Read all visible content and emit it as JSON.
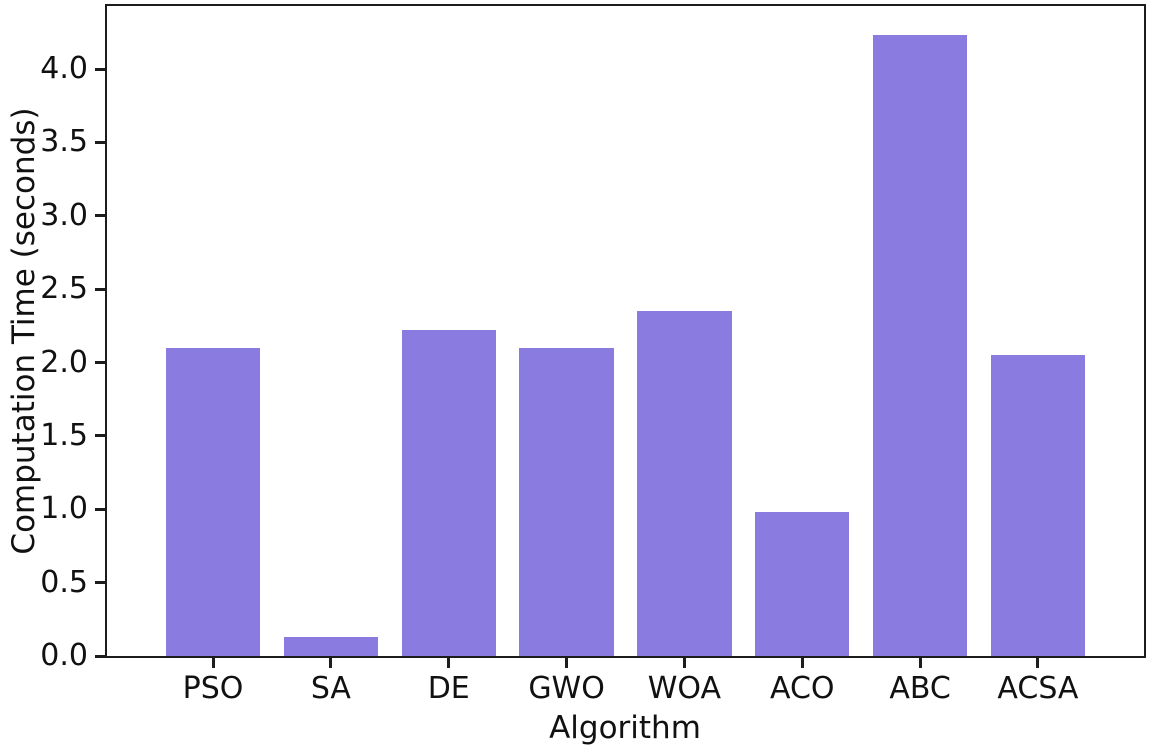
{
  "chart_data": {
    "type": "bar",
    "title": "",
    "xlabel": "Algorithm",
    "ylabel": "Computation Time (seconds)",
    "categories": [
      "PSO",
      "SA",
      "DE",
      "GWO",
      "WOA",
      "ACO",
      "ABC",
      "ACSA"
    ],
    "values": [
      2.1,
      0.13,
      2.22,
      2.1,
      2.35,
      0.98,
      4.23,
      2.05
    ],
    "ylim": [
      0,
      4.43
    ],
    "yticks": [
      0.0,
      0.5,
      1.0,
      1.5,
      2.0,
      2.5,
      3.0,
      3.5,
      4.0
    ],
    "ytick_labels": [
      "0.0",
      "0.5",
      "1.0",
      "1.5",
      "2.0",
      "2.5",
      "3.0",
      "3.5",
      "4.0"
    ],
    "bar_color": "#8A7BE0",
    "axis_color": "#1c1c1c",
    "grid": false,
    "legend": false,
    "bar_width_fraction": 0.8
  }
}
